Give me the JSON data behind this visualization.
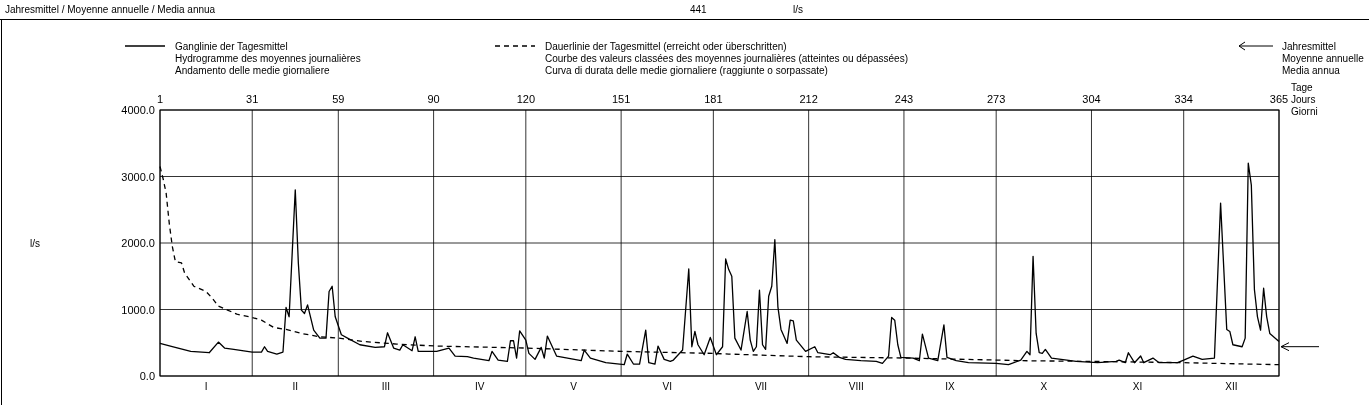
{
  "chart_data": {
    "type": "line",
    "title": "Jahresmittel / Moyenne annuelle / Media annua",
    "annotations": [
      "441",
      "l/s",
      "l/s",
      "Jahresmittel\nMoyenne annuelle\nMedia annua",
      "I",
      "II",
      "III",
      "IV",
      "V",
      "VI",
      "VII",
      "VIII",
      "IX",
      "X",
      "XI",
      "XII"
    ],
    "xlabel": "Tage\nJours\nGiorni",
    "xlim": [
      1,
      365
    ],
    "ylim": [
      0,
      4000
    ],
    "yticks": [
      {
        "value": 0,
        "label": "0.0"
      },
      {
        "value": 1000,
        "label": "1000.0"
      },
      {
        "value": 2000,
        "label": "2000.0"
      },
      {
        "value": 3000,
        "label": "3000.0"
      },
      {
        "value": 4000,
        "label": "4000.0"
      }
    ],
    "xticks": [
      1,
      31,
      59,
      90,
      120,
      151,
      181,
      212,
      243,
      273,
      304,
      334,
      365
    ],
    "grid": true,
    "legend": "top",
    "marker": "none",
    "series": [
      {
        "name": "Ganglinie der Tagesmittel\nHydrogramme des moyennes journalières\nAndamento delle medie giornaliere",
        "color": "#000000",
        "line_style": "solid",
        "x": [
          1,
          5,
          11,
          17,
          20,
          22,
          25,
          31,
          34,
          35,
          36,
          39,
          41,
          42,
          43,
          45,
          46,
          47,
          48,
          49,
          51,
          53,
          55,
          56,
          57,
          58,
          60,
          62,
          66,
          71,
          74,
          75,
          77,
          79,
          80,
          83,
          84,
          85,
          91,
          95,
          97,
          101,
          103,
          108,
          109,
          111,
          114,
          115,
          116,
          117,
          118,
          120,
          121,
          123,
          125,
          126,
          127,
          130,
          138,
          139,
          141,
          146,
          152,
          153,
          155,
          157,
          159,
          160,
          162,
          163,
          165,
          167,
          168,
          171,
          173,
          174,
          175,
          176,
          178,
          180,
          182,
          184,
          185,
          186,
          187,
          188,
          190,
          192,
          193,
          194,
          195,
          196,
          197,
          198,
          199,
          200,
          201,
          202,
          203,
          205,
          206,
          207,
          208,
          211,
          214,
          215,
          219,
          220,
          222,
          224,
          229,
          234,
          236,
          238,
          239,
          240,
          241,
          242,
          246,
          248,
          249,
          251,
          254,
          256,
          257,
          260,
          264,
          273,
          277,
          281,
          283,
          284,
          285,
          286,
          287,
          288,
          289,
          291,
          296,
          299,
          306,
          312,
          313,
          315,
          316,
          318,
          320,
          321,
          324,
          326,
          332,
          334,
          337,
          340,
          344,
          346,
          348,
          349,
          350,
          353,
          354,
          355,
          356,
          357,
          358,
          359,
          360,
          361,
          362,
          365
        ],
        "values": [
          490,
          440,
          370,
          350,
          510,
          420,
          400,
          360,
          360,
          440,
          370,
          330,
          360,
          1030,
          890,
          2800,
          1700,
          990,
          940,
          1070,
          690,
          570,
          570,
          1270,
          1350,
          890,
          620,
          570,
          470,
          430,
          440,
          650,
          420,
          390,
          470,
          380,
          590,
          370,
          370,
          420,
          300,
          290,
          270,
          230,
          370,
          240,
          220,
          530,
          530,
          270,
          680,
          540,
          340,
          250,
          430,
          270,
          600,
          300,
          230,
          390,
          270,
          200,
          170,
          330,
          180,
          180,
          690,
          200,
          180,
          450,
          250,
          220,
          240,
          390,
          1610,
          440,
          670,
          470,
          320,
          580,
          320,
          440,
          1760,
          1600,
          1500,
          570,
          390,
          970,
          540,
          370,
          440,
          1290,
          470,
          400,
          1200,
          1350,
          2050,
          1040,
          700,
          490,
          840,
          830,
          540,
          370,
          440,
          350,
          320,
          350,
          280,
          250,
          230,
          220,
          190,
          300,
          880,
          840,
          470,
          280,
          270,
          230,
          630,
          270,
          230,
          770,
          280,
          230,
          200,
          190,
          170,
          240,
          370,
          320,
          1800,
          640,
          350,
          340,
          400,
          270,
          240,
          220,
          200,
          220,
          240,
          200,
          350,
          200,
          300,
          200,
          270,
          200,
          200,
          240,
          300,
          250,
          270,
          2600,
          700,
          670,
          470,
          440,
          570,
          3200,
          2870,
          1300,
          890,
          690,
          1320,
          890,
          640,
          520
        ]
      },
      {
        "name": "Dauerlinie der Tagesmittel (erreicht oder überschritten)\nCourbe des valeurs classées des moyennes journalières (atteintes ou dépassées)\nCurva di durata delle medie giornaliere (raggiunte o sorpassate)",
        "color": "#000000",
        "line_style": "dashed",
        "x": [
          1,
          2,
          3,
          4,
          5,
          6,
          8,
          9,
          12,
          16,
          18,
          20,
          23,
          26,
          31,
          34,
          38,
          42,
          47,
          53,
          59,
          67,
          78,
          91,
          120,
          151,
          181,
          186,
          212,
          243,
          273,
          281,
          304,
          334,
          365
        ],
        "values": [
          3150,
          2970,
          2750,
          2300,
          1950,
          1720,
          1700,
          1550,
          1350,
          1270,
          1170,
          1050,
          990,
          930,
          880,
          840,
          730,
          700,
          640,
          590,
          570,
          520,
          480,
          450,
          420,
          370,
          340,
          330,
          290,
          270,
          240,
          230,
          220,
          200,
          170
        ]
      }
    ]
  }
}
